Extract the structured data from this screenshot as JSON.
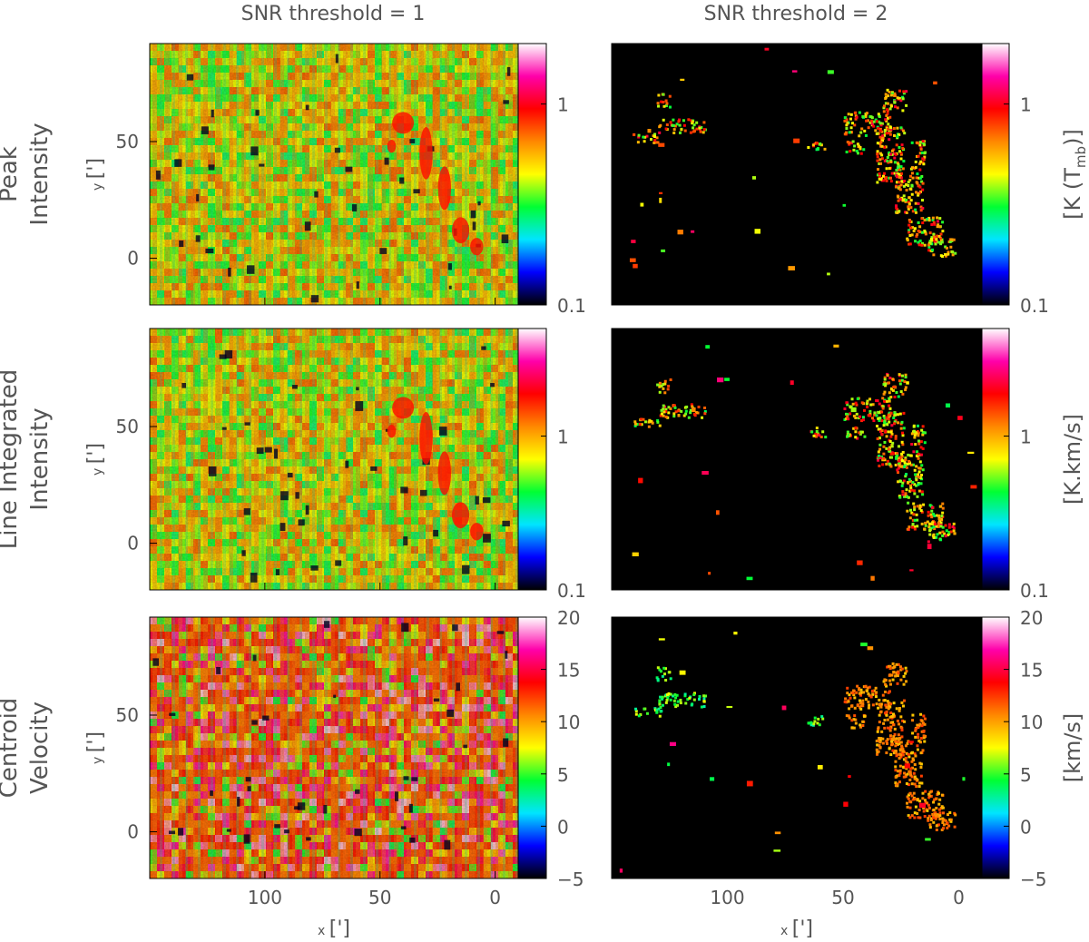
{
  "chart_data": {
    "type": "heatmap",
    "column_titles": [
      "SNR threshold = 1",
      "SNR threshold = 2"
    ],
    "rows": [
      {
        "label_lines": [
          "Peak",
          "Intensity"
        ],
        "colorbar_unit": "[K (T_mb)]",
        "colorbar_scale": "log",
        "colorbar_range": [
          0.1,
          2.0
        ],
        "colorbar_ticks": [
          "1",
          "0.1"
        ]
      },
      {
        "label_lines": [
          "Line Integrated",
          "Intensity"
        ],
        "colorbar_unit": "[K.km/s]",
        "colorbar_scale": "log",
        "colorbar_range": [
          0.1,
          5.0
        ],
        "colorbar_ticks": [
          "1",
          "0.1"
        ]
      },
      {
        "label_lines": [
          "Centroid",
          "Velocity"
        ],
        "colorbar_unit": "[km/s]",
        "colorbar_scale": "linear",
        "colorbar_range": [
          -5,
          20
        ],
        "colorbar_ticks": [
          "20",
          "15",
          "10",
          "5",
          "0",
          "−5"
        ]
      }
    ],
    "x_axis": {
      "label_prefix": "x",
      "label_unit": "[']",
      "range": [
        150,
        -10
      ],
      "ticks": [
        "100",
        "50",
        "0"
      ]
    },
    "y_axis": {
      "label_prefix": "y",
      "label_unit": "[']",
      "range": [
        -20,
        92
      ],
      "ticks": [
        "50",
        "0"
      ]
    },
    "colormap": [
      "#000000",
      "#0000ff",
      "#00e5ff",
      "#00ff33",
      "#ffff00",
      "#ff8800",
      "#ff0000",
      "#ff00aa",
      "#ffffff"
    ],
    "background_color": "#000000"
  }
}
